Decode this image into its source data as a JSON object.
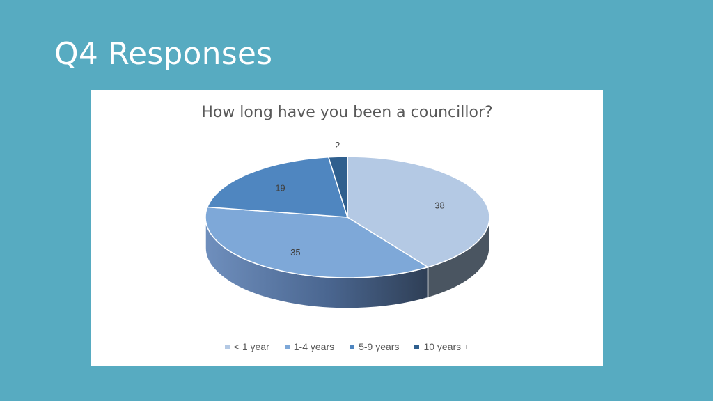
{
  "slide": {
    "title": "Q4 Responses"
  },
  "chart_data": {
    "type": "pie",
    "title": "How long have you been a councillor?",
    "categories": [
      "< 1 year",
      "1-4 years",
      "5-9 years",
      "10 years +"
    ],
    "values": [
      38,
      35,
      19,
      2
    ],
    "colors": [
      "#b4c9e4",
      "#7ea8d8",
      "#4f86c0",
      "#2f5f8e"
    ],
    "side_colors": [
      "#4a5561",
      "#3a5078",
      "#2e4a70",
      "#22375a"
    ],
    "legend_position": "bottom",
    "style": "3d"
  }
}
